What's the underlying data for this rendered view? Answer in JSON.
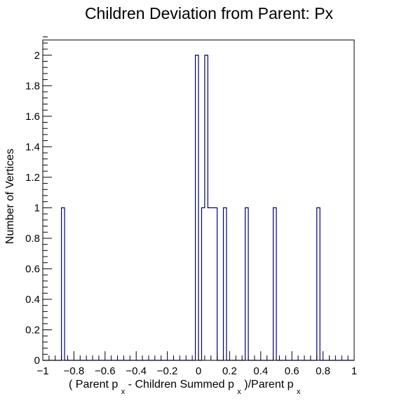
{
  "chart_data": {
    "type": "bar",
    "histogram_style": "step",
    "title": "Children Deviation from Parent: Px",
    "xlabel_parts": {
      "open": "( Parent p",
      "sub1": "x",
      "mid": "- Children Summed p",
      "sub2": "x",
      "close": ")/Parent p",
      "sub3": "x"
    },
    "ylabel": "Number of Vertices",
    "xlim": [
      -1,
      1
    ],
    "ylim": [
      0,
      2.1
    ],
    "bin_width": 0.02,
    "x_ticks": [
      -1,
      -0.8,
      -0.6,
      -0.4,
      -0.2,
      0,
      0.2,
      0.4,
      0.6,
      0.8,
      1
    ],
    "x_tick_labels": [
      "−1",
      "−0.8",
      "−0.6",
      "−0.4",
      "−0.2",
      "0",
      "0.2",
      "0.4",
      "0.6",
      "0.8",
      "1"
    ],
    "y_ticks": [
      0,
      0.2,
      0.4,
      0.6,
      0.8,
      1,
      1.2,
      1.4,
      1.6,
      1.8,
      2
    ],
    "y_tick_labels": [
      "0",
      "0.2",
      "0.4",
      "0.6",
      "0.8",
      "1",
      "1.2",
      "1.4",
      "1.6",
      "1.8",
      "2"
    ],
    "bins": [
      {
        "x_low": -0.88,
        "count": 1
      },
      {
        "x_low": -0.02,
        "count": 2
      },
      {
        "x_low": 0.02,
        "count": 1
      },
      {
        "x_low": 0.04,
        "count": 2
      },
      {
        "x_low": 0.06,
        "count": 1
      },
      {
        "x_low": 0.08,
        "count": 1
      },
      {
        "x_low": 0.1,
        "count": 1
      },
      {
        "x_low": 0.16,
        "count": 1
      },
      {
        "x_low": 0.3,
        "count": 1
      },
      {
        "x_low": 0.48,
        "count": 1
      },
      {
        "x_low": 0.76,
        "count": 1
      }
    ],
    "line_color": "#000080",
    "grid": false
  }
}
